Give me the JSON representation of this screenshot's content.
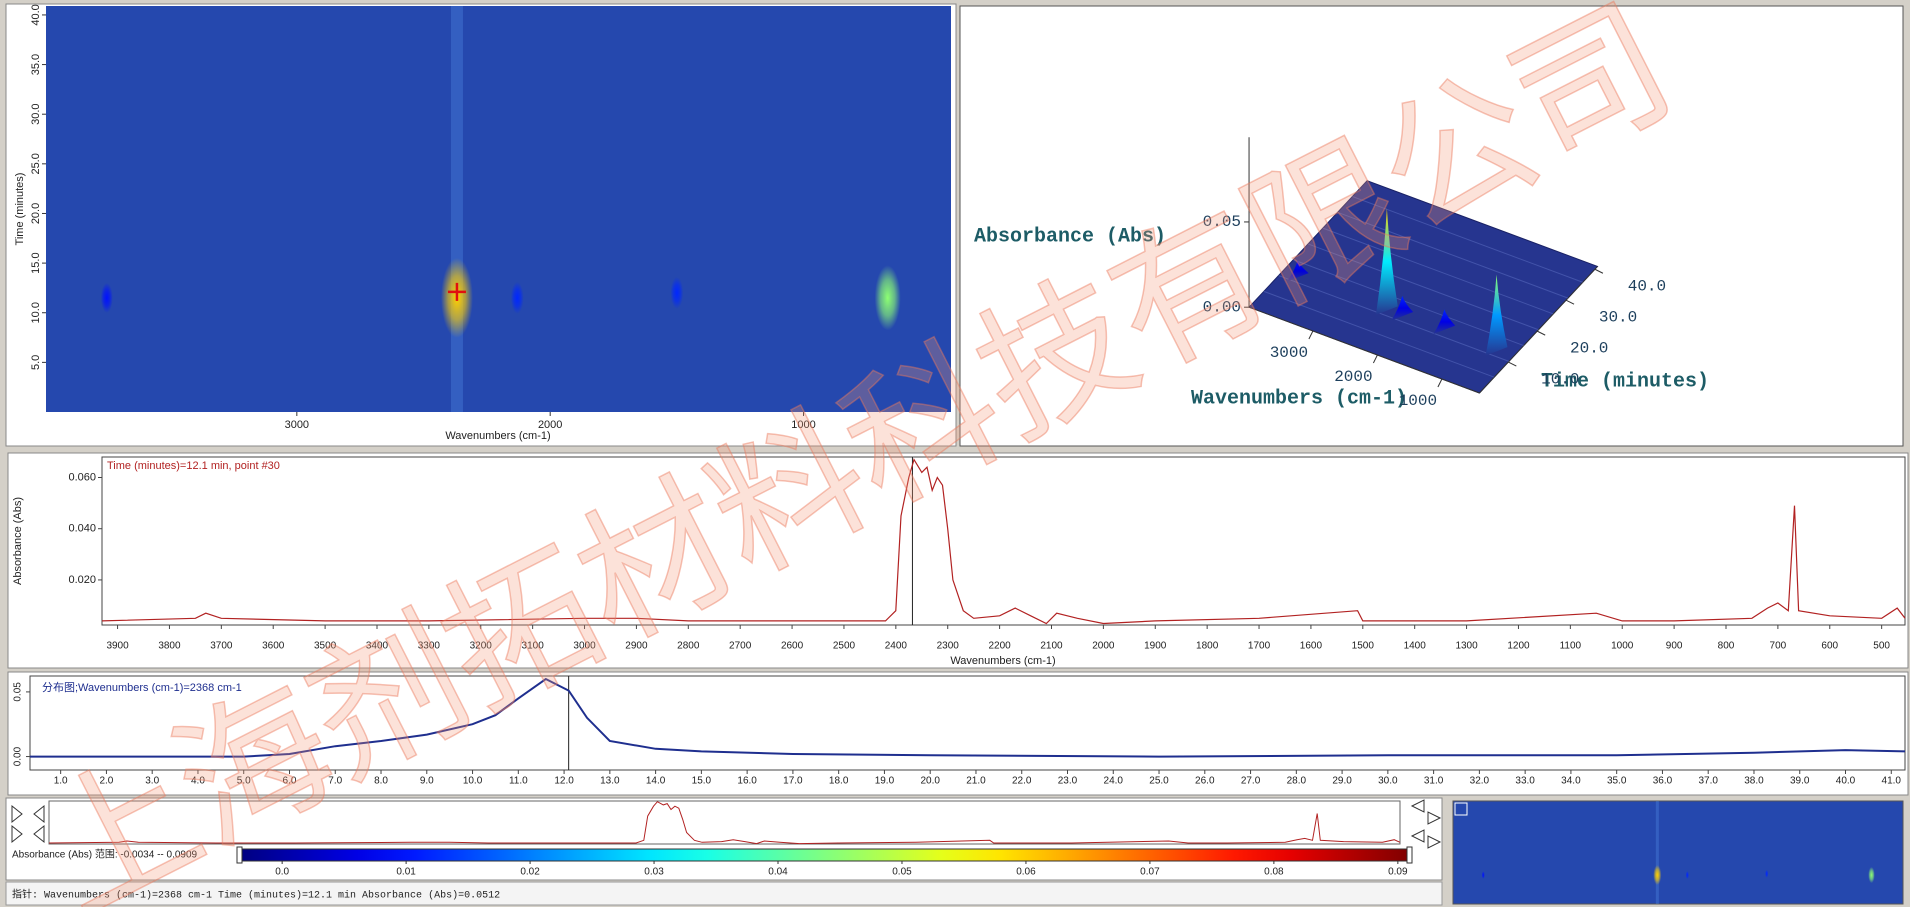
{
  "watermark": "上海剂拓材料科技有限公司",
  "heatmap": {
    "type": "heatmap",
    "xlabel": "Wavenumbers (cm-1)",
    "ylabel": "Time (minutes)",
    "xlim": [
      3990,
      418
    ],
    "ylim": [
      0,
      40.9
    ],
    "xticks": [
      3000,
      2000,
      1000
    ],
    "yticks": [
      {
        "value": 5,
        "label": "5.0"
      },
      {
        "value": 10,
        "label": "10.0"
      },
      {
        "value": 15,
        "label": "15.0"
      },
      {
        "value": 20,
        "label": "20.0"
      },
      {
        "value": 25,
        "label": "25.0"
      },
      {
        "value": 30,
        "label": "30.0"
      },
      {
        "value": 35,
        "label": "35.0"
      },
      {
        "value": 40,
        "label": "40.0"
      }
    ],
    "spots": [
      {
        "x": 2368,
        "y": 11.5,
        "z": 0.06
      },
      {
        "x": 668,
        "y": 11.5,
        "z": 0.045
      },
      {
        "x": 2130,
        "y": 11.5,
        "z": 0.012
      },
      {
        "x": 1500,
        "y": 12,
        "z": 0.012
      },
      {
        "x": 3750,
        "y": 11.5,
        "z": 0.01
      }
    ],
    "cursor": {
      "x": 2368,
      "y": 12.1
    }
  },
  "view3d": {
    "type": "surface3d",
    "zlabel": "Absorbance (Abs)",
    "xlabel": "Wavenumbers (cm-1)",
    "ylabel": "Time (minutes)",
    "xticks": [
      3000,
      2000,
      1000
    ],
    "yticks": [
      {
        "value": 10,
        "label": "10.0"
      },
      {
        "value": 20,
        "label": "20.0"
      },
      {
        "value": 30,
        "label": "30.0"
      },
      {
        "value": 40,
        "label": "40.0"
      }
    ],
    "zticks": [
      {
        "value": 0,
        "label": "0.00"
      },
      {
        "value": 0.05,
        "label": "0.05"
      }
    ]
  },
  "spectrum": {
    "type": "line",
    "annotation": "Time (minutes)=12.1 min, point #30",
    "xlabel": "Wavenumbers (cm-1)",
    "ylabel": "Absorbance (Abs)",
    "color": "#b22222",
    "xlim": [
      3930,
      455
    ],
    "ylim": [
      0.0024,
      0.068
    ],
    "xticks": [
      3900,
      3800,
      3700,
      3600,
      3500,
      3400,
      3300,
      3200,
      3100,
      3000,
      2900,
      2800,
      2700,
      2600,
      2500,
      2400,
      2300,
      2200,
      2100,
      2000,
      1900,
      1800,
      1700,
      1600,
      1500,
      1400,
      1300,
      1200,
      1100,
      1000,
      900,
      800,
      700,
      600,
      500
    ],
    "yticks": [
      {
        "value": 0.02,
        "label": "0.020"
      },
      {
        "value": 0.04,
        "label": "0.040"
      },
      {
        "value": 0.06,
        "label": "0.060"
      }
    ],
    "cursor": 2368,
    "x": [
      3930,
      3750,
      3730,
      3700,
      3500,
      3300,
      3000,
      2900,
      2800,
      2420,
      2400,
      2390,
      2375,
      2365,
      2350,
      2340,
      2330,
      2320,
      2310,
      2300,
      2290,
      2270,
      2250,
      2200,
      2170,
      2140,
      2110,
      2090,
      2050,
      2000,
      1900,
      1700,
      1510,
      1500,
      1300,
      1050,
      1000,
      900,
      750,
      720,
      700,
      680,
      668,
      660,
      600,
      500,
      470,
      455
    ],
    "values": [
      0.004,
      0.005,
      0.007,
      0.005,
      0.004,
      0.004,
      0.005,
      0.005,
      0.004,
      0.004,
      0.008,
      0.045,
      0.06,
      0.067,
      0.062,
      0.064,
      0.055,
      0.06,
      0.057,
      0.04,
      0.02,
      0.008,
      0.005,
      0.006,
      0.009,
      0.006,
      0.003,
      0.007,
      0.005,
      0.003,
      0.004,
      0.005,
      0.008,
      0.004,
      0.004,
      0.007,
      0.004,
      0.004,
      0.005,
      0.009,
      0.011,
      0.008,
      0.049,
      0.008,
      0.006,
      0.005,
      0.009,
      0.005
    ]
  },
  "profile": {
    "type": "line",
    "annotation": "分布图;Wavenumbers (cm-1)=2368 cm-1",
    "color": "#1f2f8f",
    "xlim": [
      0.33,
      41.3
    ],
    "ylim": [
      -0.0104,
      0.0623
    ],
    "xticks": [
      {
        "value": 1,
        "label": "1.0"
      },
      {
        "value": 2,
        "label": "2.0"
      },
      {
        "value": 3,
        "label": "3.0"
      },
      {
        "value": 4,
        "label": "4.0"
      },
      {
        "value": 5,
        "label": "5.0"
      },
      {
        "value": 6,
        "label": "6.0"
      },
      {
        "value": 7,
        "label": "7.0"
      },
      {
        "value": 8,
        "label": "8.0"
      },
      {
        "value": 9,
        "label": "9.0"
      },
      {
        "value": 10,
        "label": "10.0"
      },
      {
        "value": 11,
        "label": "11.0"
      },
      {
        "value": 12,
        "label": "12.0"
      },
      {
        "value": 13,
        "label": "13.0"
      },
      {
        "value": 14,
        "label": "14.0"
      },
      {
        "value": 15,
        "label": "15.0"
      },
      {
        "value": 16,
        "label": "16.0"
      },
      {
        "value": 17,
        "label": "17.0"
      },
      {
        "value": 18,
        "label": "18.0"
      },
      {
        "value": 19,
        "label": "19.0"
      },
      {
        "value": 20,
        "label": "20.0"
      },
      {
        "value": 21,
        "label": "21.0"
      },
      {
        "value": 22,
        "label": "22.0"
      },
      {
        "value": 23,
        "label": "23.0"
      },
      {
        "value": 24,
        "label": "24.0"
      },
      {
        "value": 25,
        "label": "25.0"
      },
      {
        "value": 26,
        "label": "26.0"
      },
      {
        "value": 27,
        "label": "27.0"
      },
      {
        "value": 28,
        "label": "28.0"
      },
      {
        "value": 29,
        "label": "29.0"
      },
      {
        "value": 30,
        "label": "30.0"
      },
      {
        "value": 31,
        "label": "31.0"
      },
      {
        "value": 32,
        "label": "32.0"
      },
      {
        "value": 33,
        "label": "33.0"
      },
      {
        "value": 34,
        "label": "34.0"
      },
      {
        "value": 35,
        "label": "35.0"
      },
      {
        "value": 36,
        "label": "36.0"
      },
      {
        "value": 37,
        "label": "37.0"
      },
      {
        "value": 38,
        "label": "38.0"
      },
      {
        "value": 39,
        "label": "39.0"
      },
      {
        "value": 40,
        "label": "40.0"
      },
      {
        "value": 41,
        "label": "41.0"
      }
    ],
    "yticks": [
      {
        "value": 0,
        "label": "0.00"
      },
      {
        "value": 0.05,
        "label": "0.05"
      }
    ],
    "cursor": 12.1,
    "x": [
      0.33,
      5,
      6,
      7,
      8,
      9,
      10,
      10.5,
      11,
      11.6,
      12.1,
      12.5,
      13,
      14,
      15,
      17,
      20,
      25,
      30,
      35,
      38,
      40,
      41.3
    ],
    "values": [
      0,
      0,
      0.002,
      0.008,
      0.012,
      0.017,
      0.025,
      0.032,
      0.045,
      0.06,
      0.051,
      0.03,
      0.012,
      0.006,
      0.004,
      0.002,
      0.001,
      0,
      0.001,
      0.001,
      0.003,
      0.005,
      0.004
    ]
  },
  "colorbar": {
    "label": "Absorbance (Abs) 范围: -0.0034 -- 0.0909",
    "lim": [
      -0.0034,
      0.0909
    ],
    "ticks": [
      {
        "value": 0,
        "label": "0.0"
      },
      0.01,
      0.02,
      0.03,
      0.04,
      0.05,
      0.06,
      0.07,
      0.08,
      0.09
    ]
  },
  "status": "指针: Wavenumbers (cm-1)=2368 cm-1  Time (minutes)=12.1 min  Absorbance (Abs)=0.0512"
}
